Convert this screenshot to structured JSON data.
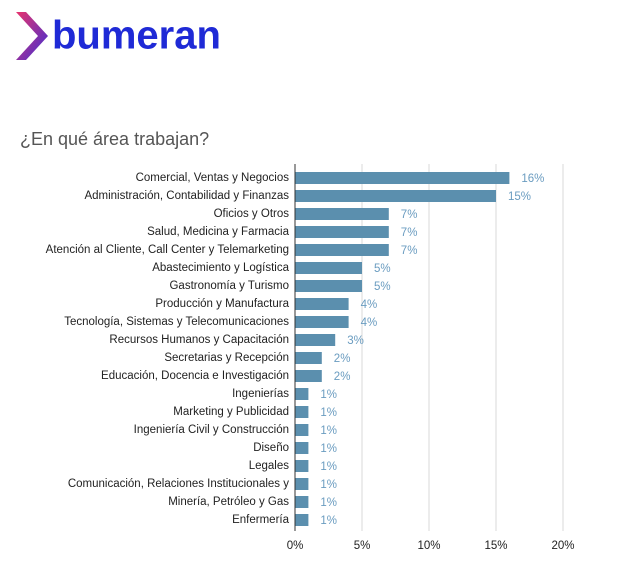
{
  "brand": "bumeran",
  "chart_data": {
    "type": "bar",
    "orientation": "horizontal",
    "title": "¿En qué área trabajan?",
    "categories": [
      "Comercial, Ventas y Negocios",
      "Administración, Contabilidad y Finanzas",
      "Oficios y Otros",
      "Salud, Medicina y Farmacia",
      "Atención al Cliente, Call Center y Telemarketing",
      "Abastecimiento y Logística",
      "Gastronomía y Turismo",
      "Producción y Manufactura",
      "Tecnología, Sistemas y Telecomunicaciones",
      "Recursos Humanos y Capacitación",
      "Secretarias y Recepción",
      "Educación, Docencia e Investigación",
      "Ingenierías",
      "Marketing y Publicidad",
      "Ingeniería Civil y Construcción",
      "Diseño",
      "Legales",
      "Comunicación, Relaciones Institucionales y",
      "Minería, Petróleo y Gas",
      "Enfermería"
    ],
    "values": [
      16,
      15,
      7,
      7,
      7,
      5,
      5,
      4,
      4,
      3,
      2,
      2,
      1,
      1,
      1,
      1,
      1,
      1,
      1,
      1
    ],
    "value_labels": [
      "16%",
      "15%",
      "7%",
      "7%",
      "7%",
      "5%",
      "5%",
      "4%",
      "4%",
      "3%",
      "2%",
      "2%",
      "1%",
      "1%",
      "1%",
      "1%",
      "1%",
      "1%",
      "1%",
      "1%"
    ],
    "color": "#5b8fae",
    "xlim": [
      0,
      20
    ],
    "xticks": [
      {
        "value": 0,
        "label": "0%"
      },
      {
        "value": 5,
        "label": "5%"
      },
      {
        "value": 10,
        "label": "10%"
      },
      {
        "value": 15,
        "label": "15%"
      },
      {
        "value": 20,
        "label": "20%"
      }
    ],
    "grid": true
  }
}
